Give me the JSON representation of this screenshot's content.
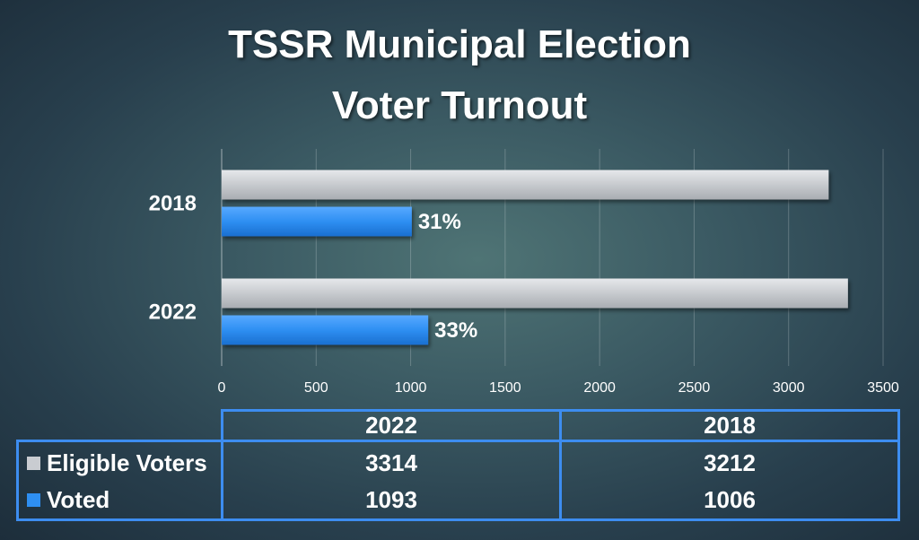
{
  "title_lines": [
    "TSSR Municipal Election",
    "Voter Turnout"
  ],
  "colors": {
    "eligible": "#c9ccd1",
    "voted": "#2e8ff2",
    "table_border": "#3d8df0"
  },
  "chart_data": {
    "type": "bar",
    "orientation": "horizontal",
    "categories": [
      "2018",
      "2022"
    ],
    "series": [
      {
        "name": "Eligible Voters",
        "values": [
          3212,
          3314
        ]
      },
      {
        "name": "Voted",
        "values": [
          1006,
          1093
        ]
      }
    ],
    "percent_labels": [
      "31%",
      "33%"
    ],
    "xlim": [
      0,
      3500
    ],
    "xticks": [
      0,
      500,
      1000,
      1500,
      2000,
      2500,
      3000,
      3500
    ],
    "grid": true
  },
  "table": {
    "columns": [
      "2022",
      "2018"
    ],
    "rows": [
      {
        "label": "Eligible Voters",
        "values": [
          "3314",
          "3212"
        ]
      },
      {
        "label": "Voted",
        "values": [
          "1093",
          "1006"
        ]
      }
    ]
  }
}
